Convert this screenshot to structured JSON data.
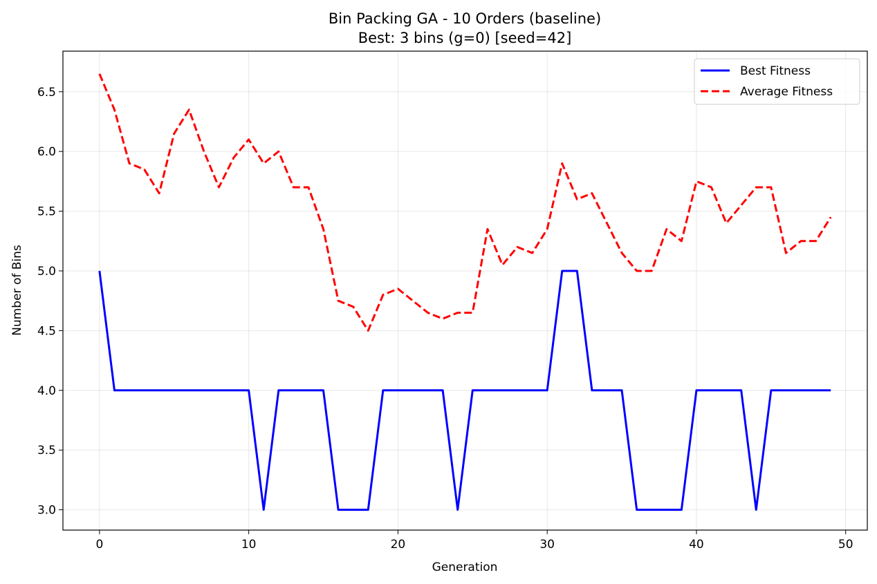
{
  "chart_data": {
    "type": "line",
    "title": "Bin Packing GA - 10 Orders (baseline)",
    "subtitle": "Best: 3 bins (g=0) [seed=42]",
    "xlabel": "Generation",
    "ylabel": "Number of Bins",
    "xlim": [
      -2.45,
      51.45
    ],
    "ylim": [
      2.83,
      6.84
    ],
    "xticks": [
      0,
      10,
      20,
      30,
      40,
      50
    ],
    "xtick_labels": [
      "0",
      "10",
      "20",
      "30",
      "40",
      "50"
    ],
    "yticks": [
      3.0,
      3.5,
      4.0,
      4.5,
      5.0,
      5.5,
      6.0,
      6.5
    ],
    "ytick_labels": [
      "3.0",
      "3.5",
      "4.0",
      "4.5",
      "5.0",
      "5.5",
      "6.0",
      "6.5"
    ],
    "grid": true,
    "legend_position": "top-right",
    "x": [
      0,
      1,
      2,
      3,
      4,
      5,
      6,
      7,
      8,
      9,
      10,
      11,
      12,
      13,
      14,
      15,
      16,
      17,
      18,
      19,
      20,
      21,
      22,
      23,
      24,
      25,
      26,
      27,
      28,
      29,
      30,
      31,
      32,
      33,
      34,
      35,
      36,
      37,
      38,
      39,
      40,
      41,
      42,
      43,
      44,
      45,
      46,
      47,
      48,
      49
    ],
    "series": [
      {
        "name": "Best Fitness",
        "color": "#0000ff",
        "style": "solid",
        "values": [
          5,
          4,
          4,
          4,
          4,
          4,
          4,
          4,
          4,
          4,
          4,
          3,
          4,
          4,
          4,
          4,
          3,
          3,
          3,
          4,
          4,
          4,
          4,
          4,
          3,
          4,
          4,
          4,
          4,
          4,
          4,
          5,
          5,
          4,
          4,
          4,
          3,
          3,
          3,
          3,
          4,
          4,
          4,
          4,
          3,
          4,
          4,
          4,
          4,
          4
        ]
      },
      {
        "name": "Average Fitness",
        "color": "#ff0000",
        "style": "dashed",
        "values": [
          6.65,
          6.35,
          5.9,
          5.85,
          5.65,
          6.15,
          6.35,
          6.0,
          5.7,
          5.95,
          6.1,
          5.9,
          6.0,
          5.7,
          5.7,
          5.35,
          4.75,
          4.7,
          4.5,
          4.8,
          4.85,
          4.75,
          4.65,
          4.6,
          4.65,
          4.65,
          5.35,
          5.05,
          5.2,
          5.15,
          5.35,
          5.9,
          5.6,
          5.65,
          5.4,
          5.15,
          5.0,
          5.0,
          5.35,
          5.25,
          5.75,
          5.7,
          5.4,
          5.55,
          5.7,
          5.7,
          5.15,
          5.25,
          5.25,
          5.45
        ]
      }
    ]
  }
}
